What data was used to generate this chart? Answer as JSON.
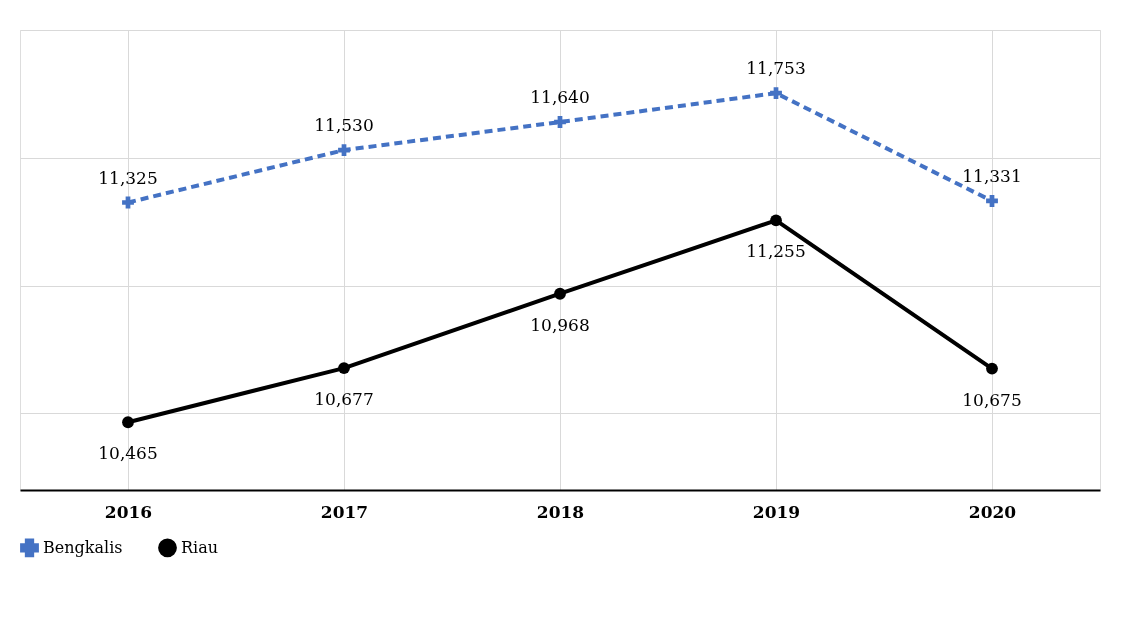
{
  "chart_data": {
    "type": "line",
    "categories": [
      "2016",
      "2017",
      "2018",
      "2019",
      "2020"
    ],
    "series": [
      {
        "name": "Bengkalis",
        "color": "#4472c4",
        "values": [
          11325,
          11530,
          11640,
          11753,
          11331
        ],
        "value_labels": [
          "11,325",
          "11,530",
          "11,640",
          "11,753",
          "11,331"
        ],
        "marker": "cross",
        "line_style": "dashed"
      },
      {
        "name": "Riau",
        "color": "#000000",
        "values": [
          10465,
          10677,
          10968,
          11255,
          10675
        ],
        "value_labels": [
          "10,465",
          "10,677",
          "10,968",
          "11,255",
          "10,675"
        ],
        "marker": "circle",
        "line_style": "solid"
      }
    ],
    "tick_labels": "x",
    "grid": true,
    "legend": "bottom"
  }
}
